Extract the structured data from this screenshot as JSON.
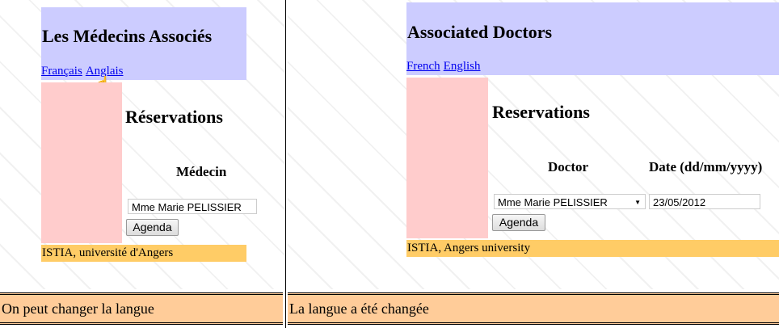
{
  "left": {
    "title": "Les Médecins Associés",
    "links": [
      "Français",
      "Anglais"
    ],
    "section_title": "Réservations",
    "doctor_header": "Médecin",
    "doctor_select": "Mme Marie PELISSIER",
    "agenda_button": "Agenda",
    "footer": "ISTIA, université d'Angers",
    "caption": "On peut changer la langue"
  },
  "right": {
    "title": "Associated Doctors",
    "links": [
      "French",
      "English"
    ],
    "section_title": "Reservations",
    "doctor_header": "Doctor",
    "date_header": "Date (dd/mm/yyyy)",
    "doctor_select": "Mme Marie PELISSIER",
    "date_value": "23/05/2012",
    "agenda_button": "Agenda",
    "footer": "ISTIA, Angers university",
    "caption": "La langue a été changée"
  },
  "colors": {
    "header": "#ccccff",
    "sidebar": "#ffcccc",
    "footer": "#ffcc66",
    "caption": "#ffcc99"
  }
}
